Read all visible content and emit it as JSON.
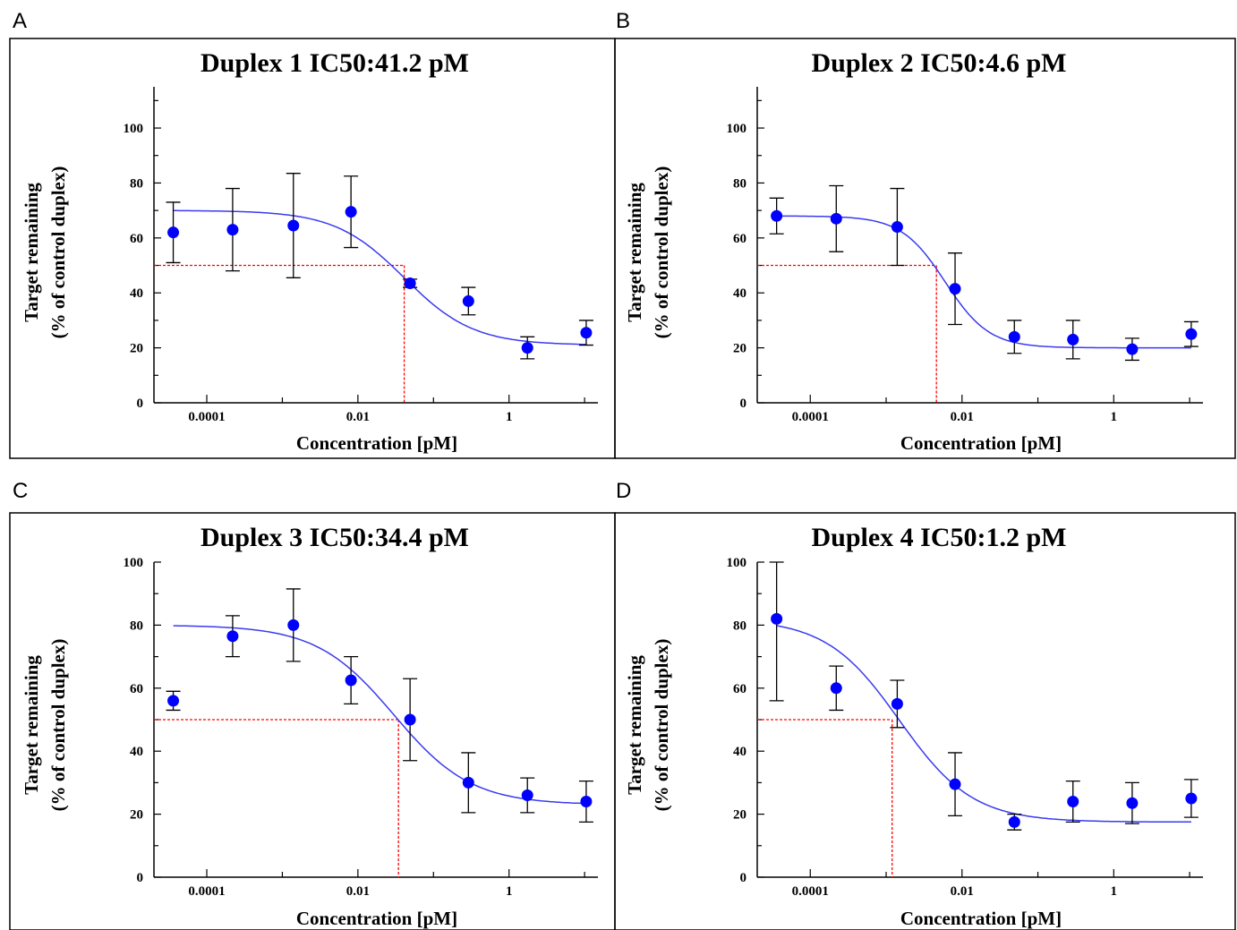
{
  "panel_letters": [
    "A",
    "B",
    "C",
    "D"
  ],
  "colors": {
    "point": "#0000ff",
    "curve": "#3a3af0",
    "ic50_line": "#ff0000",
    "error_bar": "#000000",
    "frame": "#000000"
  },
  "chart_data": [
    {
      "type": "scatter",
      "title": "Duplex 1 IC50:41.2 pM",
      "xlabel": "Concentration   [pM]",
      "ylabel_line1": "Target  remaining",
      "ylabel_line2": "(% of  control  duplex)",
      "xscale": "log",
      "xlim": [
        2e-05,
        15
      ],
      "ylim": [
        0,
        115
      ],
      "xticks": [
        0.0001,
        0.01,
        1
      ],
      "xtick_labels": [
        "0.0001",
        "0.01",
        "1"
      ],
      "yticks": [
        0,
        20,
        40,
        60,
        80,
        100
      ],
      "ytick_labels": [
        "0",
        "20",
        "40",
        "60",
        "80",
        "100"
      ],
      "ic50": 0.041,
      "series": [
        {
          "x": [
            3.6e-05,
            0.00022,
            0.0014,
            0.0081,
            0.049,
            0.29,
            1.75,
            10.5
          ],
          "y": [
            62,
            63,
            64.5,
            69.5,
            43.5,
            37,
            20,
            25.5
          ],
          "yerr": [
            11,
            15,
            19,
            13,
            1.5,
            5,
            4,
            4.5
          ]
        }
      ],
      "curve": {
        "top": 70,
        "bottom": 21,
        "ec50": 0.041,
        "hill": 0.95
      }
    },
    {
      "type": "scatter",
      "title": "Duplex 2 IC50:4.6 pM",
      "xlabel": "Concentration   [pM]",
      "ylabel_line1": "Target  remaining",
      "ylabel_line2": "(% of  control  duplex)",
      "xscale": "log",
      "xlim": [
        2e-05,
        15
      ],
      "ylim": [
        0,
        115
      ],
      "xticks": [
        0.0001,
        0.01,
        1
      ],
      "xtick_labels": [
        "0.0001",
        "0.01",
        "1"
      ],
      "yticks": [
        0,
        20,
        40,
        60,
        80,
        100
      ],
      "ytick_labels": [
        "0",
        "20",
        "40",
        "60",
        "80",
        "100"
      ],
      "ic50": 0.0046,
      "series": [
        {
          "x": [
            3.6e-05,
            0.00022,
            0.0014,
            0.0081,
            0.049,
            0.29,
            1.75,
            10.5
          ],
          "y": [
            68,
            67,
            64,
            41.5,
            24,
            23,
            19.5,
            25
          ],
          "yerr": [
            6.5,
            12,
            14,
            13,
            6,
            7,
            4,
            4.5
          ]
        }
      ],
      "curve": {
        "top": 68,
        "bottom": 20,
        "ec50": 0.006,
        "hill": 1.5
      }
    },
    {
      "type": "scatter",
      "title": "Duplex 3 IC50:34.4 pM",
      "xlabel": "Concentration   [pM]",
      "ylabel_line1": "Target  remaining",
      "ylabel_line2": "(% of  control  duplex)",
      "xscale": "log",
      "xlim": [
        2e-05,
        15
      ],
      "ylim": [
        0,
        100
      ],
      "xticks": [
        0.0001,
        0.01,
        1
      ],
      "xtick_labels": [
        "0.0001",
        "0.01",
        "1"
      ],
      "yticks": [
        0,
        20,
        40,
        60,
        80,
        100
      ],
      "ytick_labels": [
        "0",
        "20",
        "40",
        "60",
        "80",
        "100"
      ],
      "ic50": 0.0344,
      "series": [
        {
          "x": [
            3.6e-05,
            0.00022,
            0.0014,
            0.0081,
            0.049,
            0.29,
            1.75,
            10.5
          ],
          "y": [
            56,
            76.5,
            80,
            62.5,
            50,
            30,
            26,
            24
          ],
          "yerr": [
            3,
            6.5,
            11.5,
            7.5,
            13,
            9.5,
            5.5,
            6.5
          ]
        }
      ],
      "curve": {
        "top": 80,
        "bottom": 23,
        "ec50": 0.03,
        "hill": 0.85
      }
    },
    {
      "type": "scatter",
      "title": "Duplex 4 IC50:1.2 pM",
      "xlabel": "Concentration   [pM]",
      "ylabel_line1": "Target  remaining",
      "ylabel_line2": "(% of  control  duplex)",
      "xscale": "log",
      "xlim": [
        2e-05,
        15
      ],
      "ylim": [
        0,
        100
      ],
      "xticks": [
        0.0001,
        0.01,
        1
      ],
      "xtick_labels": [
        "0.0001",
        "0.01",
        "1"
      ],
      "yticks": [
        0,
        20,
        40,
        60,
        80,
        100
      ],
      "ytick_labels": [
        "0",
        "20",
        "40",
        "60",
        "80",
        "100"
      ],
      "ic50": 0.0012,
      "series": [
        {
          "x": [
            3.6e-05,
            0.00022,
            0.0014,
            0.0081,
            0.049,
            0.29,
            1.75,
            10.5
          ],
          "y": [
            82,
            60,
            55,
            29.5,
            17.5,
            24,
            23.5,
            25
          ],
          "yerr": [
            26,
            7,
            7.5,
            10,
            2.5,
            6.5,
            6.5,
            6
          ]
        }
      ],
      "curve": {
        "top": 82,
        "bottom": 17.5,
        "ec50": 0.0015,
        "hill": 0.9
      }
    }
  ]
}
